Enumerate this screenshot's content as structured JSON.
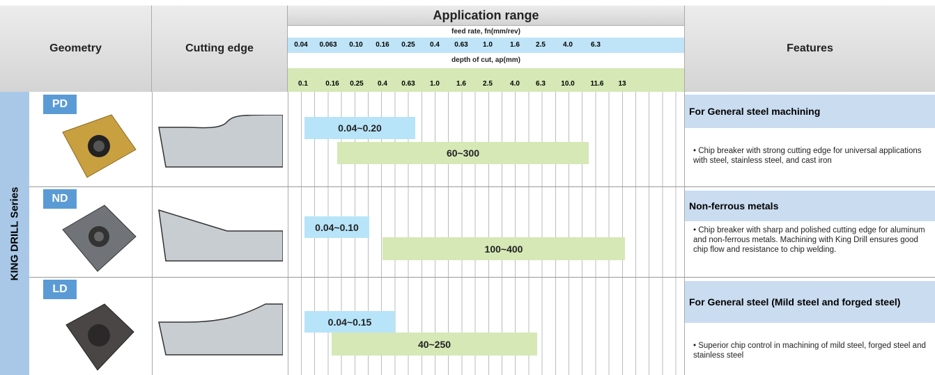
{
  "header": {
    "geometry": "Geometry",
    "cutting_edge": "Cutting edge",
    "application_range": "Application range",
    "feed_rate_label": "feed rate, fn(mm/rev)",
    "feed_rate_ticks": [
      "0.04",
      "0.063",
      "0.10",
      "0.16",
      "0.25",
      "0.4",
      "0.63",
      "1.0",
      "1.6",
      "2.5",
      "4.0",
      "6.3"
    ],
    "depth_label": "depth of cut, ap(mm)",
    "depth_ticks": [
      "0.1",
      "0.16",
      "0.25",
      "0.4",
      "0.63",
      "1.0",
      "1.6",
      "2.5",
      "4.0",
      "6.3",
      "10.0",
      "11.6",
      "13"
    ],
    "features": "Features"
  },
  "series_label": "KING DRILL Series",
  "rows": [
    {
      "code": "PD",
      "feed_range": "0.04~0.20",
      "depth_range": "60~300",
      "feature_title": "For General steel machining",
      "feature_text": "• Chip breaker with strong cutting edge for universal applications with steel, stainless steel, and cast iron"
    },
    {
      "code": "ND",
      "feed_range": "0.04~0.10",
      "depth_range": "100~400",
      "feature_title": "Non-ferrous metals",
      "feature_text": "• Chip breaker with sharp and polished cutting edge for aluminum and non-ferrous metals. Machining with King Drill ensures good chip flow and resistance to chip welding."
    },
    {
      "code": "LD",
      "feed_range": "0.04~0.15",
      "depth_range": "40~250",
      "feature_title": "For General steel (Mild steel and forged steel)",
      "feature_text": "• Superior chip control in machining of mild steel, forged steel and stainless steel"
    }
  ]
}
